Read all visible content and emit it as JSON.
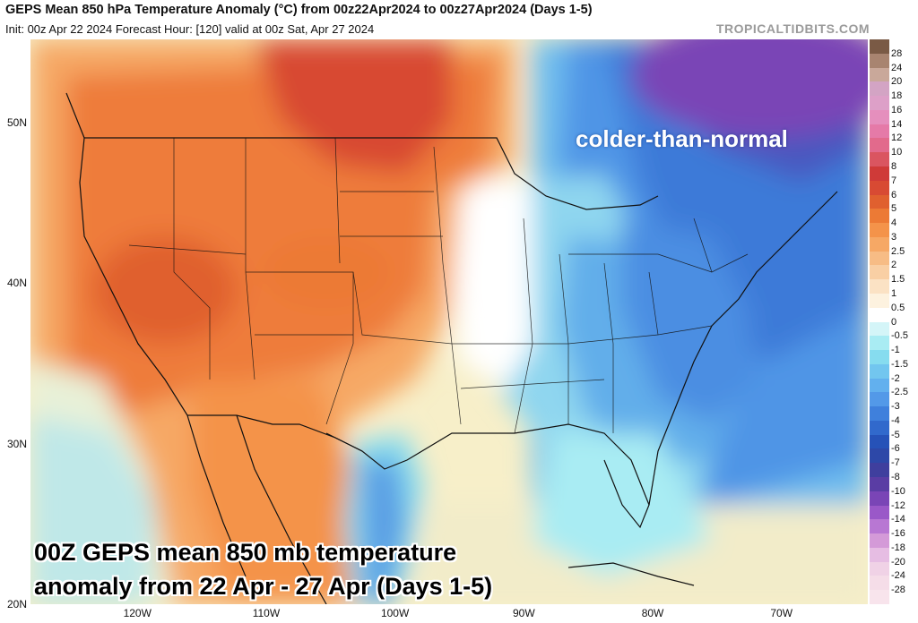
{
  "header": {
    "title": "GEPS Mean 850 hPa Temperature Anomaly (°C) from 00z22Apr2024 to 00z27Apr2024 (Days 1-5)",
    "subtitle": "Init: 00z Apr 22 2024   Forecast Hour: [120]   valid at 00z Sat, Apr 27 2024",
    "brand": "TROPICALTIDBITS.COM"
  },
  "axes": {
    "lat_labels": [
      {
        "label": "50N",
        "value": 50
      },
      {
        "label": "40N",
        "value": 40
      },
      {
        "label": "30N",
        "value": 30
      },
      {
        "label": "20N",
        "value": 20
      }
    ],
    "lon_labels": [
      {
        "label": "120W",
        "value": -120
      },
      {
        "label": "110W",
        "value": -110
      },
      {
        "label": "100W",
        "value": -100
      },
      {
        "label": "90W",
        "value": -90
      },
      {
        "label": "80W",
        "value": -80
      },
      {
        "label": "70W",
        "value": -70
      }
    ]
  },
  "colorbar": {
    "labels": [
      "28",
      "24",
      "20",
      "18",
      "16",
      "14",
      "12",
      "10",
      "8",
      "7",
      "6",
      "5",
      "4",
      "3",
      "2.5",
      "2",
      "1.5",
      "1",
      "0.5",
      "0",
      "-0.5",
      "-1",
      "-1.5",
      "-2",
      "-2.5",
      "-3",
      "-4",
      "-5",
      "-6",
      "-7",
      "-8",
      "-10",
      "-12",
      "-14",
      "-16",
      "-18",
      "-20",
      "-24",
      "-28"
    ],
    "colors": [
      "#7a5a45",
      "#a88470",
      "#c9a89a",
      "#d3a4c4",
      "#dda0c8",
      "#e58fbd",
      "#e57aa8",
      "#e26a8c",
      "#da5560",
      "#cf3a38",
      "#d84a33",
      "#e0602f",
      "#ec7a35",
      "#f4934a",
      "#f6a865",
      "#f7bc85",
      "#f9cfa4",
      "#fbe2c4",
      "#fdf2df",
      "#ffffff",
      "#d4f5f8",
      "#a9ecf3",
      "#86dcef",
      "#72c6ef",
      "#62b0ee",
      "#5399e8",
      "#3f80dc",
      "#3169cc",
      "#2652b8",
      "#2d48a8",
      "#3f3f9e",
      "#5a3da4",
      "#7a45b6",
      "#9a58c8",
      "#b877d3",
      "#d49ad8",
      "#e6bde3",
      "#f0d2e6",
      "#f5dde8"
    ]
  },
  "annotations": {
    "cold_label": "colder-than-normal",
    "main_line1": "00Z GEPS mean 850 mb temperature",
    "main_line2": "anomaly from 22 Apr - 27 Apr (Days 1-5)"
  }
}
